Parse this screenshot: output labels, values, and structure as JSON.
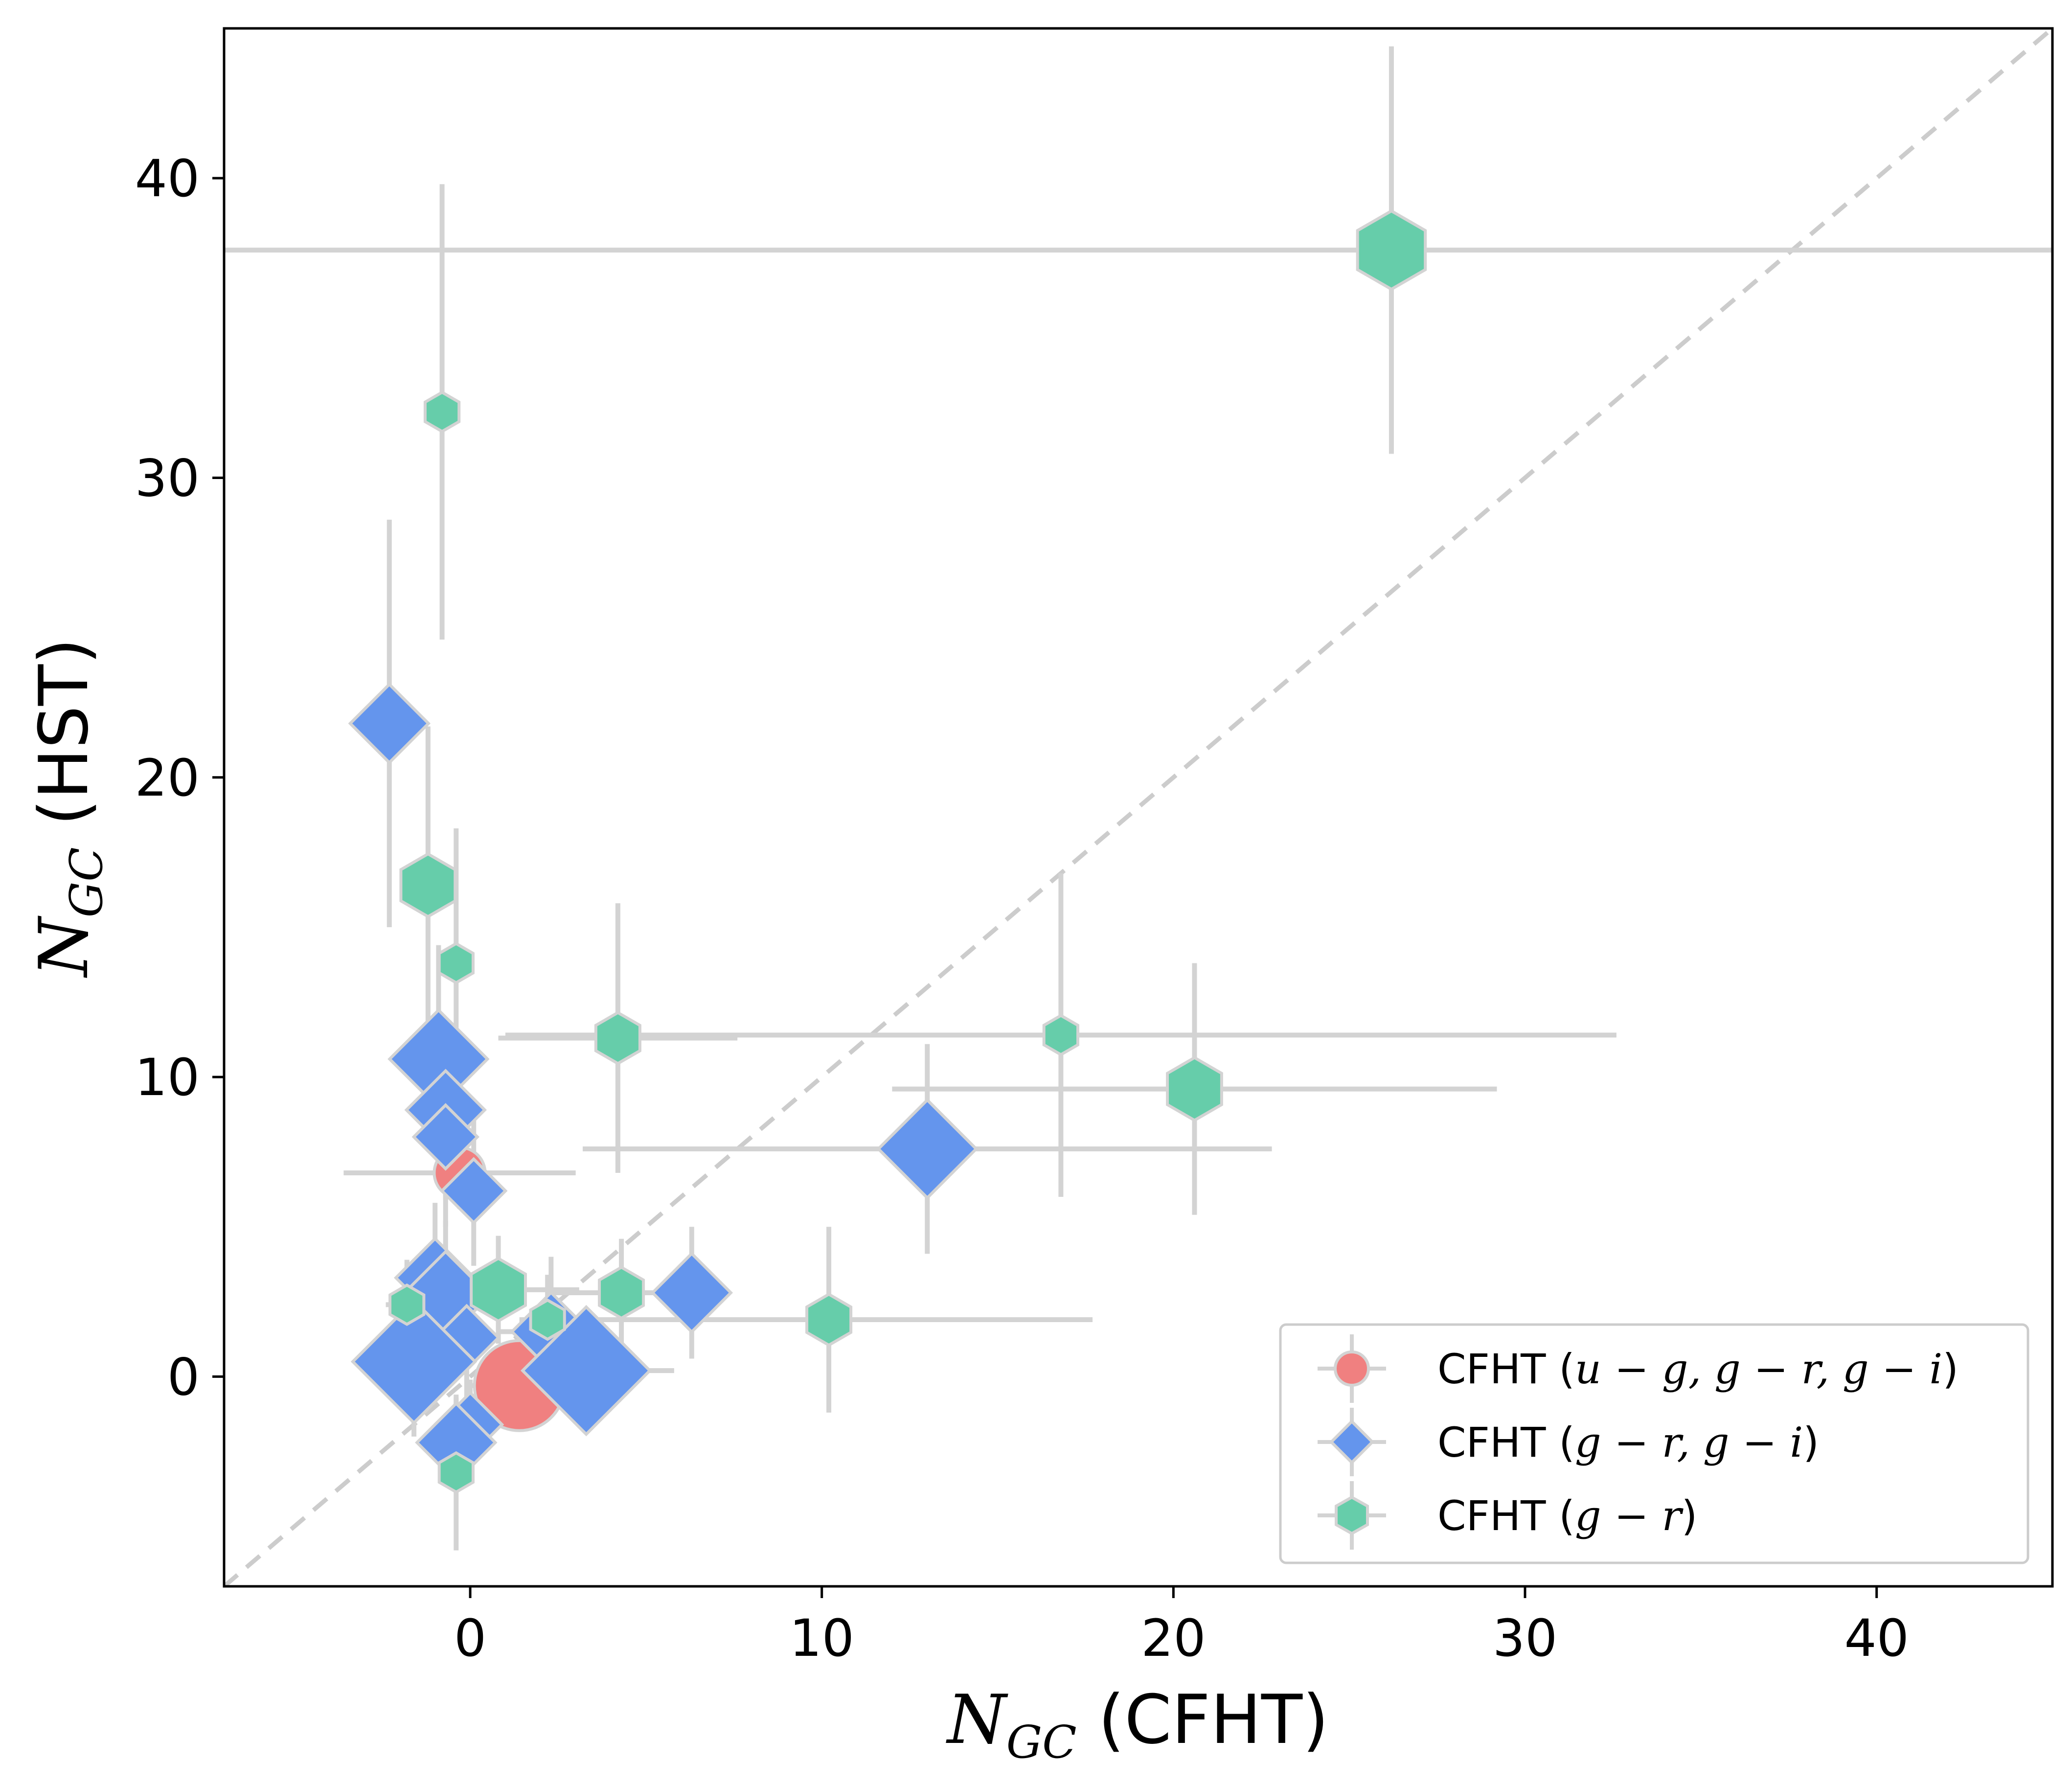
{
  "chart_data": {
    "type": "scatter",
    "xlabel": {
      "sym": "N",
      "sub": "GC",
      "rest": " (CFHT)"
    },
    "ylabel": {
      "sym": "N",
      "sub": "GC",
      "rest": " (HST)"
    },
    "xlim": [
      -7,
      45
    ],
    "ylim": [
      -7,
      45
    ],
    "xticks": [
      0,
      10,
      20,
      30,
      40
    ],
    "yticks": [
      0,
      10,
      20,
      30,
      40
    ],
    "grid": false,
    "legend_position": "lower right",
    "reference_line": {
      "style": "dashed",
      "slope": 1,
      "intercept": 0,
      "color": "#cccccc"
    },
    "errorbar_color": "#d3d3d3",
    "series": [
      {
        "name": "CFHT (u − g, g − r, g − i)",
        "legend_parts": [
          "CFHT (",
          "u − g, g − r, g − i",
          ")"
        ],
        "marker": "circle",
        "color": "#f08080",
        "points": [
          {
            "x": -0.3,
            "y": 6.8,
            "xerr": 3.3,
            "yerr": 1.2,
            "size": 1.3
          },
          {
            "x": 1.4,
            "y": -0.3,
            "xerr": 1.5,
            "yerr": 1.2,
            "size": 2.3
          }
        ]
      },
      {
        "name": "CFHT (g − r, g − i)",
        "legend_parts": [
          "CFHT (",
          "g − r, g − i",
          ")"
        ],
        "marker": "diamond",
        "color": "#6495ed",
        "points": [
          {
            "x": -2.3,
            "y": 21.8,
            "xerr": 0.4,
            "yerr": 6.8,
            "size": 1.6
          },
          {
            "x": -0.9,
            "y": 10.6,
            "xerr": 0.6,
            "yerr": 3.8,
            "size": 2.0
          },
          {
            "x": -0.7,
            "y": 8.9,
            "xerr": 0.6,
            "yerr": 3.0,
            "size": 1.6
          },
          {
            "x": -0.7,
            "y": 8.0,
            "xerr": 0.6,
            "yerr": 3.0,
            "size": 1.3
          },
          {
            "x": 0.1,
            "y": 6.2,
            "xerr": 0.6,
            "yerr": 2.5,
            "size": 1.3
          },
          {
            "x": -1.0,
            "y": 3.3,
            "xerr": 1.0,
            "yerr": 2.5,
            "size": 1.6
          },
          {
            "x": -0.7,
            "y": 2.7,
            "xerr": 1.0,
            "yerr": 2.5,
            "size": 1.8
          },
          {
            "x": -0.1,
            "y": 1.3,
            "xerr": 0.8,
            "yerr": 2.0,
            "size": 1.3
          },
          {
            "x": -1.6,
            "y": 0.5,
            "xerr": 1.5,
            "yerr": 2.5,
            "size": 2.5
          },
          {
            "x": 2.3,
            "y": 1.5,
            "xerr": 1.5,
            "yerr": 2.5,
            "size": 1.6
          },
          {
            "x": 3.3,
            "y": 0.2,
            "xerr": 2.5,
            "yerr": 2.0,
            "size": 2.6
          },
          {
            "x": 6.3,
            "y": 2.8,
            "xerr": 1.0,
            "yerr": 2.2,
            "size": 1.6
          },
          {
            "x": 13.0,
            "y": 7.6,
            "xerr": 9.8,
            "yerr": 3.5,
            "size": 2.0
          },
          {
            "x": 0.0,
            "y": -1.6,
            "xerr": 0.6,
            "yerr": 1.5,
            "size": 1.3
          },
          {
            "x": -0.4,
            "y": -2.2,
            "xerr": 0.6,
            "yerr": 1.5,
            "size": 1.6
          }
        ]
      },
      {
        "name": "CFHT (g − r)",
        "legend_parts": [
          "CFHT (",
          "g − r",
          ")"
        ],
        "marker": "hexagon",
        "color": "#66cdaa",
        "points": [
          {
            "x": 26.2,
            "y": 37.6,
            "xerr": 100,
            "yerr": 6.8,
            "size": 2.0
          },
          {
            "x": -0.8,
            "y": 32.2,
            "xerr": 0.3,
            "yerr": 7.6,
            "size": 1.0
          },
          {
            "x": -1.2,
            "y": 16.4,
            "xerr": 0.4,
            "yerr": 5.3,
            "size": 1.6
          },
          {
            "x": -0.4,
            "y": 13.8,
            "xerr": 0.3,
            "yerr": 4.5,
            "size": 1.0
          },
          {
            "x": 4.2,
            "y": 11.3,
            "xerr": 3.4,
            "yerr": 4.5,
            "size": 1.3
          },
          {
            "x": 16.8,
            "y": 11.4,
            "xerr": 15.8,
            "yerr": 5.4,
            "size": 1.0
          },
          {
            "x": 20.6,
            "y": 9.6,
            "xerr": 8.6,
            "yerr": 4.2,
            "size": 1.6
          },
          {
            "x": 0.8,
            "y": 2.9,
            "xerr": 2.3,
            "yerr": 1.8,
            "size": 1.6
          },
          {
            "x": 4.3,
            "y": 2.8,
            "xerr": 2.0,
            "yerr": 1.8,
            "size": 1.3
          },
          {
            "x": 10.2,
            "y": 1.9,
            "xerr": 7.5,
            "yerr": 3.1,
            "size": 1.3
          },
          {
            "x": -1.8,
            "y": 2.4,
            "xerr": 0.6,
            "yerr": 1.5,
            "size": 1.0
          },
          {
            "x": -0.4,
            "y": -3.2,
            "xerr": 0.3,
            "yerr": 2.6,
            "size": 1.0
          },
          {
            "x": 2.2,
            "y": 1.9,
            "xerr": 0.8,
            "yerr": 1.5,
            "size": 1.0
          }
        ]
      }
    ]
  }
}
